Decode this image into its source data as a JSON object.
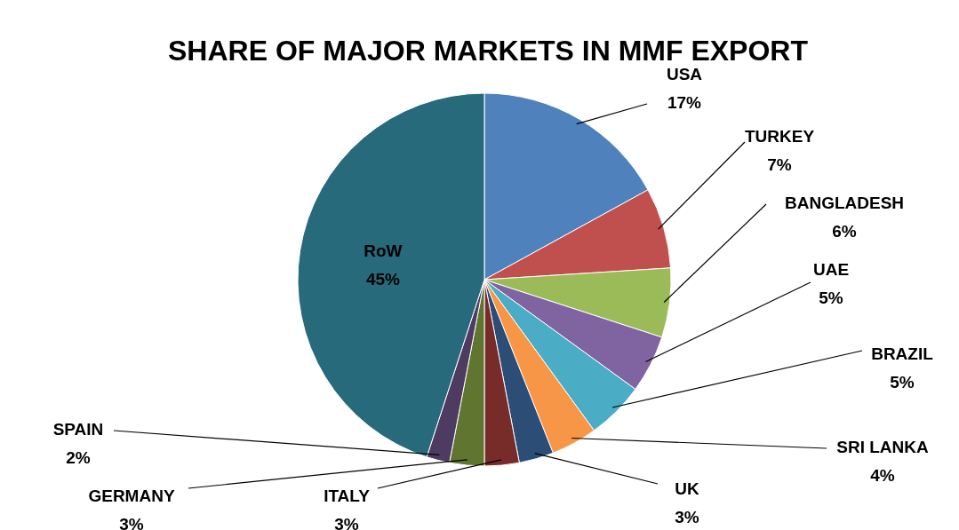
{
  "chart_data": {
    "type": "pie",
    "title": "SHARE OF MAJOR MARKETS IN MMF EXPORT",
    "categories": [
      "USA",
      "TURKEY",
      "BANGLADESH",
      "UAE",
      "BRAZIL",
      "SRI LANKA",
      "UK",
      "ITALY",
      "GERMANY",
      "SPAIN",
      "RoW"
    ],
    "values": [
      17,
      7,
      6,
      5,
      5,
      4,
      3,
      3,
      3,
      2,
      45
    ],
    "colors": [
      "#4f81bd",
      "#c0504d",
      "#9bbb59",
      "#8064a2",
      "#4bacc6",
      "#f79646",
      "#2c4d75",
      "#772c2a",
      "#5f7530",
      "#4d3b62",
      "#276a7c"
    ],
    "value_labels": [
      "17%",
      "7%",
      "6%",
      "5%",
      "5%",
      "4%",
      "3%",
      "3%",
      "3%",
      "2%",
      "45%"
    ]
  }
}
